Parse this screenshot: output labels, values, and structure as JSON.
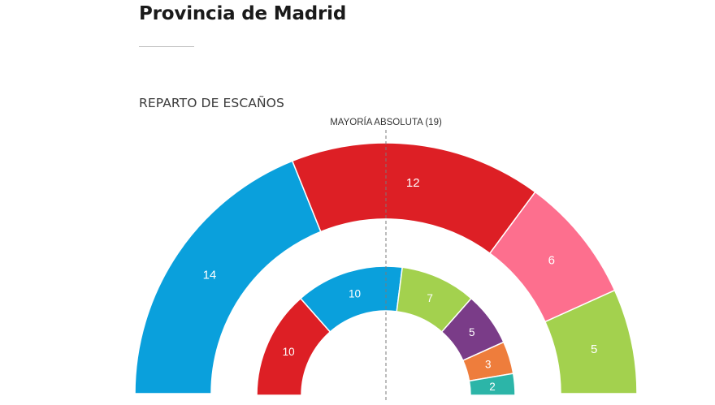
{
  "header": {
    "title": "Provincia de Madrid",
    "section_title": "REPARTO DE ESCAÑOS"
  },
  "chart_data": {
    "type": "hemicycle",
    "majority_label": "MAYORÍA ABSOLUTA (19)",
    "majority": 19,
    "rings": [
      {
        "ring": "outer",
        "total_seats": 37,
        "segments": [
          {
            "value": 14,
            "color": "#0aa0dc"
          },
          {
            "value": 12,
            "color": "#dd1f25"
          },
          {
            "value": 6,
            "color": "#fd6f8e"
          },
          {
            "value": 5,
            "color": "#a3d14e"
          }
        ]
      },
      {
        "ring": "inner",
        "total_seats": 37,
        "segments": [
          {
            "value": 10,
            "color": "#dd1f25"
          },
          {
            "value": 10,
            "color": "#0aa0dc"
          },
          {
            "value": 7,
            "color": "#a3d14e"
          },
          {
            "value": 5,
            "color": "#7a3c88"
          },
          {
            "value": 3,
            "color": "#ee7d3c"
          },
          {
            "value": 2,
            "color": "#2cb5a8"
          }
        ]
      }
    ]
  }
}
